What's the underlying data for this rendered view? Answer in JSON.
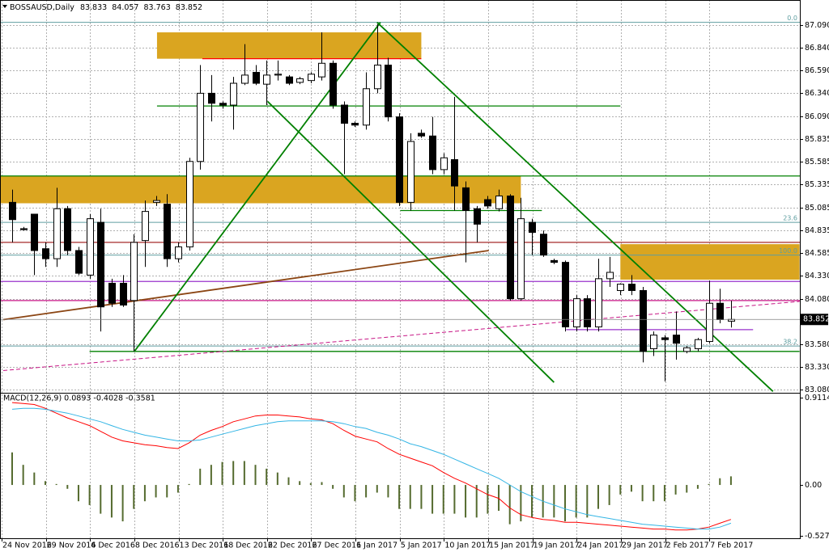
{
  "chart_data": {
    "type": "candlestick",
    "title": "BOSSAUSD,Daily",
    "categories": [
      "24 Nov 2016",
      null,
      null,
      null,
      "29 Nov 2016",
      null,
      null,
      null,
      "4 Dec 2016",
      null,
      null,
      null,
      "8 Dec 2016",
      null,
      null,
      null,
      "13 Dec 2016",
      null,
      null,
      null,
      "18 Dec 2016",
      null,
      null,
      null,
      "22 Dec 2016",
      null,
      null,
      null,
      "27 Dec 2016",
      null,
      null,
      null,
      "1 Jan 2017",
      null,
      null,
      null,
      "5 Jan 2017",
      null,
      null,
      null,
      "10 Jan 2017",
      null,
      null,
      null,
      "15 Jan 2017",
      null,
      null,
      null,
      "19 Jan 2017",
      null,
      null,
      null,
      "24 Jan 2017",
      null,
      null,
      null,
      "29 Jan 2017",
      null,
      null,
      null,
      "2 Feb 2017",
      null,
      null,
      null,
      "7 Feb 2017",
      null
    ],
    "open": [
      85.14,
      84.85,
      85.01,
      84.63,
      84.52,
      85.07,
      84.61,
      84.34,
      84.92,
      84.25,
      84.25,
      84.06,
      84.72,
      85.14,
      85.12,
      84.52,
      84.65,
      85.59,
      86.34,
      86.23,
      86.21,
      86.45,
      86.57,
      86.44,
      86.54,
      86.52,
      86.46,
      86.48,
      86.52,
      86.67,
      86.21,
      86.01,
      85.99,
      86.39,
      86.65,
      86.08,
      85.14,
      85.9,
      85.87,
      85.5,
      85.61,
      85.3,
      85.07,
      85.17,
      85.07,
      85.21,
      84.08,
      84.92,
      84.79,
      84.5,
      84.48,
      83.77,
      84.08,
      83.77,
      84.3,
      84.17,
      84.24,
      84.17,
      83.53,
      83.65,
      83.68,
      83.5,
      83.53,
      83.61,
      84.03,
      83.833
    ],
    "high": [
      85.28,
      84.87,
      85.01,
      84.7,
      85.3,
      85.1,
      84.65,
      85.01,
      85.07,
      84.3,
      84.34,
      84.79,
      85.16,
      85.21,
      85.23,
      84.7,
      85.63,
      86.65,
      86.54,
      86.25,
      86.52,
      86.88,
      86.65,
      86.7,
      86.7,
      86.54,
      86.52,
      86.57,
      87.01,
      86.7,
      86.25,
      86.03,
      86.57,
      87.1,
      86.73,
      86.12,
      85.9,
      85.94,
      86.08,
      85.68,
      86.3,
      85.37,
      85.1,
      85.21,
      85.28,
      85.23,
      85.19,
      84.96,
      84.83,
      84.52,
      84.5,
      84.12,
      84.12,
      84.52,
      84.54,
      84.25,
      84.34,
      84.21,
      83.72,
      83.68,
      83.94,
      83.56,
      83.65,
      84.28,
      84.19,
      84.057
    ],
    "low": [
      84.7,
      84.83,
      84.34,
      84.43,
      84.43,
      84.56,
      84.34,
      84.3,
      83.72,
      83.99,
      83.99,
      83.5,
      84.43,
      85.1,
      84.43,
      84.48,
      84.61,
      85.5,
      86.03,
      86.17,
      85.94,
      86.43,
      86.43,
      86.21,
      86.48,
      86.43,
      86.44,
      86.45,
      86.48,
      86.17,
      85.45,
      85.97,
      85.94,
      86.34,
      86.03,
      85.1,
      85.05,
      85.85,
      85.45,
      85.45,
      85.05,
      84.48,
      84.7,
      85.07,
      85.04,
      84.06,
      84.06,
      84.56,
      84.54,
      84.46,
      83.72,
      83.72,
      83.72,
      83.72,
      84.21,
      84.12,
      84.12,
      83.38,
      83.45,
      83.17,
      83.41,
      83.48,
      83.5,
      83.59,
      83.81,
      83.763
    ],
    "close": [
      84.95,
      84.84,
      84.61,
      84.52,
      85.07,
      84.61,
      84.36,
      84.96,
      83.99,
      84.03,
      84.01,
      84.7,
      85.04,
      85.16,
      84.52,
      84.65,
      85.59,
      86.34,
      86.23,
      86.21,
      86.45,
      86.54,
      86.45,
      86.54,
      86.55,
      86.45,
      86.5,
      86.55,
      86.67,
      86.21,
      86.01,
      85.99,
      86.39,
      86.65,
      86.08,
      85.14,
      85.81,
      85.87,
      85.5,
      85.63,
      85.32,
      85.05,
      84.9,
      85.1,
      85.21,
      84.08,
      84.96,
      84.81,
      84.56,
      84.48,
      83.77,
      84.08,
      83.77,
      84.3,
      84.37,
      84.24,
      84.17,
      83.5,
      83.68,
      83.63,
      83.59,
      83.54,
      83.63,
      84.03,
      83.85,
      83.852
    ],
    "up_color": "#ffffff",
    "down_color": "#000000",
    "ylim": [
      83.054,
      87.366
    ],
    "yticks": [
      {
        "value": 87.09,
        "label": "87.090"
      },
      {
        "value": 86.84,
        "label": "86.840"
      },
      {
        "value": 86.59,
        "label": "86.590"
      },
      {
        "value": 86.34,
        "label": "86.340"
      },
      {
        "value": 86.09,
        "label": "86.090"
      },
      {
        "value": 85.835,
        "label": "85.835"
      },
      {
        "value": 85.585,
        "label": "85.585"
      },
      {
        "value": 85.335,
        "label": "85.335"
      },
      {
        "value": 85.085,
        "label": "85.085"
      },
      {
        "value": 84.835,
        "label": "84.835"
      },
      {
        "value": 84.585,
        "label": "84.585"
      },
      {
        "value": 84.33,
        "label": "84.330"
      },
      {
        "value": 84.08,
        "label": "84.080"
      },
      {
        "value": 83.58,
        "label": "83.580"
      },
      {
        "value": 83.33,
        "label": "83.330"
      },
      {
        "value": 83.08,
        "label": "83.080"
      }
    ],
    "grid": true,
    "zones": [
      {
        "from": 13.1,
        "to": 37.0,
        "high": 87.01,
        "low": 86.72,
        "color": "#daa520"
      },
      {
        "from": -1.1,
        "to": 46.0,
        "high": 85.43,
        "low": 85.13,
        "color": "#daa520"
      },
      {
        "from": 55.0,
        "to": 71.2,
        "high": 84.68,
        "low": 84.29,
        "color": "#daa520"
      }
    ],
    "levels": [
      {
        "price": 86.72,
        "color": "#ff0000",
        "from": 17.2,
        "to": 37.0
      },
      {
        "price": 86.2,
        "color": "#008000",
        "from": 13.1,
        "to": 55.0
      },
      {
        "price": 85.43,
        "color": "#008000"
      },
      {
        "price": 85.05,
        "color": "#008000",
        "from": 35.1,
        "to": 47.9
      },
      {
        "price": 84.7,
        "color": "#a52a2a"
      },
      {
        "price": 84.27,
        "color": "#9932cc"
      },
      {
        "price": 84.06,
        "color": "#c71585"
      },
      {
        "price": 83.74,
        "color": "#9932cc",
        "from": 50.1,
        "to": 67.0
      },
      {
        "price": 83.5,
        "color": "#008000",
        "from": 7.0,
        "to": 71.2
      }
    ],
    "fib_levels": [
      {
        "label": "0.0",
        "price": 87.12,
        "color": "#5f9ea0"
      },
      {
        "label": "23.6",
        "price": 84.92,
        "color": "#5f9ea0"
      },
      {
        "label": "100.0",
        "price": 84.56,
        "color": "#5f9ea0"
      },
      {
        "label": "38.2",
        "price": 83.56,
        "color": "#5f9ea0"
      }
    ],
    "trendlines": [
      {
        "x": [
          -0.8,
          43.1
        ],
        "y": [
          83.85,
          84.61
        ],
        "color": "#8b4513"
      },
      {
        "x": [
          -0.8,
          71.2
        ],
        "y": [
          83.29,
          84.05
        ],
        "color": "#c71585",
        "dash": true
      },
      {
        "x": [
          11.05,
          33.3
        ],
        "y": [
          83.5,
          87.12
        ],
        "color": "#008000"
      },
      {
        "x": [
          33.0,
          68.8
        ],
        "y": [
          87.12,
          83.06
        ],
        "color": "#008000"
      },
      {
        "x": [
          23.1,
          49.0
        ],
        "y": [
          86.25,
          83.16
        ],
        "color": "#008000"
      }
    ],
    "macd": {
      "type": "macd",
      "title": "MACD(12,26,9) 0.0893 -0.4028 -0.3581",
      "ylim": [
        -0.565,
        0.954
      ],
      "yticks": [
        {
          "value": 0.9114,
          "label": "0.9114"
        },
        {
          "value": 0,
          "label": "0.00"
        },
        {
          "value": -0.5275,
          "label": "-0.5275"
        }
      ],
      "histogram": {
        "color": "#556b2f",
        "values": [
          0.34,
          0.21,
          0.13,
          0.04,
          0.01,
          -0.04,
          -0.17,
          -0.21,
          -0.3,
          -0.34,
          -0.38,
          -0.25,
          -0.17,
          -0.13,
          -0.13,
          -0.08,
          0.01,
          0.17,
          0.21,
          0.24,
          0.25,
          0.25,
          0.21,
          0.17,
          0.13,
          0.08,
          0.04,
          0.02,
          0.03,
          -0.04,
          -0.13,
          -0.17,
          -0.13,
          -0.08,
          -0.13,
          -0.25,
          -0.25,
          -0.25,
          -0.3,
          -0.3,
          -0.3,
          -0.34,
          -0.34,
          -0.3,
          -0.27,
          -0.41,
          -0.38,
          -0.34,
          -0.34,
          -0.34,
          -0.38,
          -0.34,
          -0.34,
          -0.25,
          -0.21,
          -0.1,
          -0.07,
          -0.17,
          -0.17,
          -0.17,
          -0.1,
          -0.08,
          -0.04,
          0.01,
          0.07,
          0.09
        ]
      },
      "series": [
        {
          "color": "#ff0000",
          "values": [
            0.86,
            0.85,
            0.84,
            0.8,
            0.75,
            0.7,
            0.66,
            0.62,
            0.56,
            0.5,
            0.46,
            0.44,
            0.42,
            0.41,
            0.39,
            0.38,
            0.44,
            0.52,
            0.57,
            0.61,
            0.66,
            0.69,
            0.72,
            0.73,
            0.73,
            0.72,
            0.71,
            0.69,
            0.68,
            0.64,
            0.57,
            0.51,
            0.48,
            0.45,
            0.38,
            0.32,
            0.28,
            0.24,
            0.2,
            0.13,
            0.07,
            0.02,
            -0.04,
            -0.1,
            -0.14,
            -0.24,
            -0.31,
            -0.34,
            -0.36,
            -0.37,
            -0.39,
            -0.39,
            -0.4,
            -0.41,
            -0.42,
            -0.43,
            -0.44,
            -0.45,
            -0.46,
            -0.46,
            -0.47,
            -0.47,
            -0.46,
            -0.44,
            -0.4,
            -0.36
          ]
        },
        {
          "color": "#33b5e5",
          "values": [
            0.79,
            0.8,
            0.8,
            0.79,
            0.77,
            0.75,
            0.72,
            0.69,
            0.66,
            0.62,
            0.58,
            0.55,
            0.52,
            0.5,
            0.48,
            0.46,
            0.46,
            0.47,
            0.5,
            0.53,
            0.56,
            0.59,
            0.62,
            0.64,
            0.66,
            0.67,
            0.67,
            0.67,
            0.67,
            0.66,
            0.64,
            0.61,
            0.59,
            0.55,
            0.52,
            0.48,
            0.43,
            0.4,
            0.36,
            0.32,
            0.27,
            0.22,
            0.17,
            0.12,
            0.07,
            0.0,
            -0.07,
            -0.12,
            -0.17,
            -0.21,
            -0.25,
            -0.28,
            -0.31,
            -0.33,
            -0.35,
            -0.37,
            -0.39,
            -0.41,
            -0.42,
            -0.43,
            -0.44,
            -0.45,
            -0.46,
            -0.46,
            -0.44,
            -0.4
          ]
        }
      ]
    }
  }
}
